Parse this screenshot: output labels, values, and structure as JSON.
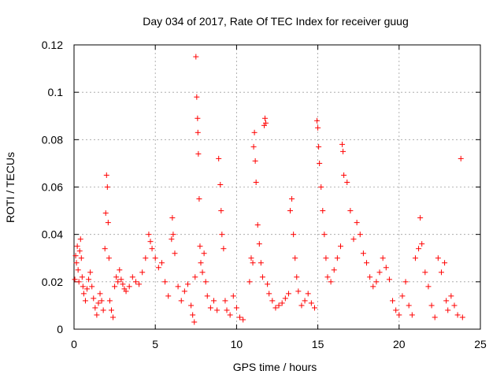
{
  "chart_data": {
    "type": "scatter",
    "title": "Day 034 of 2017, Rate Of TEC Index for receiver guug",
    "xlabel": "GPS time / hours",
    "ylabel": "ROTI / TECUs",
    "xlim": [
      0,
      25
    ],
    "ylim": [
      0,
      0.12
    ],
    "xticks": [
      0,
      5,
      10,
      15,
      20,
      25
    ],
    "yticks": [
      0,
      0.02,
      0.04,
      0.06,
      0.08,
      0.1,
      0.12
    ],
    "xtick_labels": [
      "0",
      "5",
      "10",
      "15",
      "20",
      "25"
    ],
    "ytick_labels": [
      "0",
      "0.02",
      "0.04",
      "0.06",
      "0.08",
      "0.1",
      "0.12"
    ],
    "grid": true,
    "marker": "+",
    "color": "#ff0000",
    "series": [
      {
        "points": [
          [
            0.05,
            0.021
          ],
          [
            0.1,
            0.031
          ],
          [
            0.15,
            0.028
          ],
          [
            0.2,
            0.035
          ],
          [
            0.25,
            0.025
          ],
          [
            0.3,
            0.02
          ],
          [
            0.35,
            0.033
          ],
          [
            0.4,
            0.038
          ],
          [
            0.45,
            0.03
          ],
          [
            0.5,
            0.022
          ],
          [
            0.55,
            0.018
          ],
          [
            0.6,
            0.015
          ],
          [
            0.7,
            0.012
          ],
          [
            0.8,
            0.017
          ],
          [
            0.9,
            0.021
          ],
          [
            1.0,
            0.024
          ],
          [
            1.1,
            0.018
          ],
          [
            1.2,
            0.013
          ],
          [
            1.3,
            0.009
          ],
          [
            1.4,
            0.006
          ],
          [
            1.5,
            0.011
          ],
          [
            1.6,
            0.015
          ],
          [
            1.7,
            0.012
          ],
          [
            1.8,
            0.008
          ],
          [
            1.9,
            0.034
          ],
          [
            1.95,
            0.049
          ],
          [
            2.0,
            0.065
          ],
          [
            2.05,
            0.06
          ],
          [
            2.1,
            0.045
          ],
          [
            2.15,
            0.03
          ],
          [
            2.2,
            0.012
          ],
          [
            2.3,
            0.008
          ],
          [
            2.4,
            0.005
          ],
          [
            2.5,
            0.018
          ],
          [
            2.6,
            0.022
          ],
          [
            2.7,
            0.02
          ],
          [
            2.8,
            0.025
          ],
          [
            2.9,
            0.021
          ],
          [
            3.0,
            0.019
          ],
          [
            3.1,
            0.017
          ],
          [
            3.2,
            0.016
          ],
          [
            3.4,
            0.018
          ],
          [
            3.6,
            0.022
          ],
          [
            3.8,
            0.02
          ],
          [
            4.0,
            0.019
          ],
          [
            4.2,
            0.024
          ],
          [
            4.4,
            0.03
          ],
          [
            4.6,
            0.04
          ],
          [
            4.7,
            0.037
          ],
          [
            4.8,
            0.034
          ],
          [
            5.0,
            0.03
          ],
          [
            5.2,
            0.026
          ],
          [
            5.4,
            0.028
          ],
          [
            5.6,
            0.02
          ],
          [
            5.8,
            0.014
          ],
          [
            6.0,
            0.038
          ],
          [
            6.05,
            0.047
          ],
          [
            6.1,
            0.04
          ],
          [
            6.2,
            0.032
          ],
          [
            6.4,
            0.018
          ],
          [
            6.6,
            0.012
          ],
          [
            6.8,
            0.016
          ],
          [
            7.0,
            0.019
          ],
          [
            7.2,
            0.01
          ],
          [
            7.3,
            0.006
          ],
          [
            7.4,
            0.003
          ],
          [
            7.45,
            0.022
          ],
          [
            7.5,
            0.115
          ],
          [
            7.55,
            0.098
          ],
          [
            7.6,
            0.089
          ],
          [
            7.62,
            0.083
          ],
          [
            7.65,
            0.074
          ],
          [
            7.7,
            0.055
          ],
          [
            7.75,
            0.035
          ],
          [
            7.8,
            0.028
          ],
          [
            7.9,
            0.024
          ],
          [
            8.0,
            0.032
          ],
          [
            8.1,
            0.02
          ],
          [
            8.2,
            0.014
          ],
          [
            8.4,
            0.009
          ],
          [
            8.6,
            0.012
          ],
          [
            8.8,
            0.008
          ],
          [
            8.9,
            0.072
          ],
          [
            9.0,
            0.061
          ],
          [
            9.05,
            0.05
          ],
          [
            9.1,
            0.04
          ],
          [
            9.2,
            0.034
          ],
          [
            9.3,
            0.012
          ],
          [
            9.4,
            0.008
          ],
          [
            9.6,
            0.006
          ],
          [
            9.8,
            0.014
          ],
          [
            10.0,
            0.009
          ],
          [
            10.2,
            0.005
          ],
          [
            10.4,
            0.004
          ],
          [
            10.8,
            0.02
          ],
          [
            10.9,
            0.03
          ],
          [
            11.0,
            0.028
          ],
          [
            11.05,
            0.077
          ],
          [
            11.1,
            0.083
          ],
          [
            11.15,
            0.071
          ],
          [
            11.2,
            0.062
          ],
          [
            11.3,
            0.044
          ],
          [
            11.4,
            0.036
          ],
          [
            11.5,
            0.028
          ],
          [
            11.6,
            0.022
          ],
          [
            11.7,
            0.086
          ],
          [
            11.75,
            0.089
          ],
          [
            11.8,
            0.087
          ],
          [
            11.9,
            0.019
          ],
          [
            12.0,
            0.015
          ],
          [
            12.2,
            0.012
          ],
          [
            12.4,
            0.009
          ],
          [
            12.6,
            0.01
          ],
          [
            12.8,
            0.011
          ],
          [
            13.0,
            0.013
          ],
          [
            13.2,
            0.015
          ],
          [
            13.3,
            0.05
          ],
          [
            13.4,
            0.055
          ],
          [
            13.5,
            0.04
          ],
          [
            13.6,
            0.03
          ],
          [
            13.7,
            0.022
          ],
          [
            13.8,
            0.016
          ],
          [
            14.0,
            0.01
          ],
          [
            14.2,
            0.012
          ],
          [
            14.4,
            0.015
          ],
          [
            14.6,
            0.011
          ],
          [
            14.8,
            0.009
          ],
          [
            14.95,
            0.088
          ],
          [
            15.0,
            0.085
          ],
          [
            15.05,
            0.077
          ],
          [
            15.1,
            0.07
          ],
          [
            15.2,
            0.06
          ],
          [
            15.3,
            0.05
          ],
          [
            15.4,
            0.04
          ],
          [
            15.5,
            0.03
          ],
          [
            15.6,
            0.022
          ],
          [
            15.8,
            0.02
          ],
          [
            16.0,
            0.025
          ],
          [
            16.2,
            0.03
          ],
          [
            16.4,
            0.035
          ],
          [
            16.5,
            0.078
          ],
          [
            16.55,
            0.075
          ],
          [
            16.6,
            0.065
          ],
          [
            16.8,
            0.062
          ],
          [
            17.0,
            0.05
          ],
          [
            17.2,
            0.038
          ],
          [
            17.4,
            0.045
          ],
          [
            17.6,
            0.04
          ],
          [
            17.8,
            0.032
          ],
          [
            18.0,
            0.028
          ],
          [
            18.2,
            0.022
          ],
          [
            18.4,
            0.018
          ],
          [
            18.6,
            0.02
          ],
          [
            18.8,
            0.024
          ],
          [
            19.0,
            0.03
          ],
          [
            19.2,
            0.026
          ],
          [
            19.4,
            0.021
          ],
          [
            19.6,
            0.012
          ],
          [
            19.8,
            0.008
          ],
          [
            20.0,
            0.006
          ],
          [
            20.2,
            0.014
          ],
          [
            20.4,
            0.02
          ],
          [
            20.6,
            0.01
          ],
          [
            20.8,
            0.006
          ],
          [
            21.0,
            0.03
          ],
          [
            21.2,
            0.034
          ],
          [
            21.3,
            0.047
          ],
          [
            21.4,
            0.036
          ],
          [
            21.6,
            0.024
          ],
          [
            21.8,
            0.018
          ],
          [
            22.0,
            0.01
          ],
          [
            22.2,
            0.005
          ],
          [
            22.4,
            0.03
          ],
          [
            22.6,
            0.024
          ],
          [
            22.8,
            0.028
          ],
          [
            22.9,
            0.012
          ],
          [
            23.0,
            0.008
          ],
          [
            23.2,
            0.014
          ],
          [
            23.4,
            0.01
          ],
          [
            23.6,
            0.006
          ],
          [
            23.8,
            0.072
          ],
          [
            23.9,
            0.005
          ]
        ]
      }
    ]
  }
}
